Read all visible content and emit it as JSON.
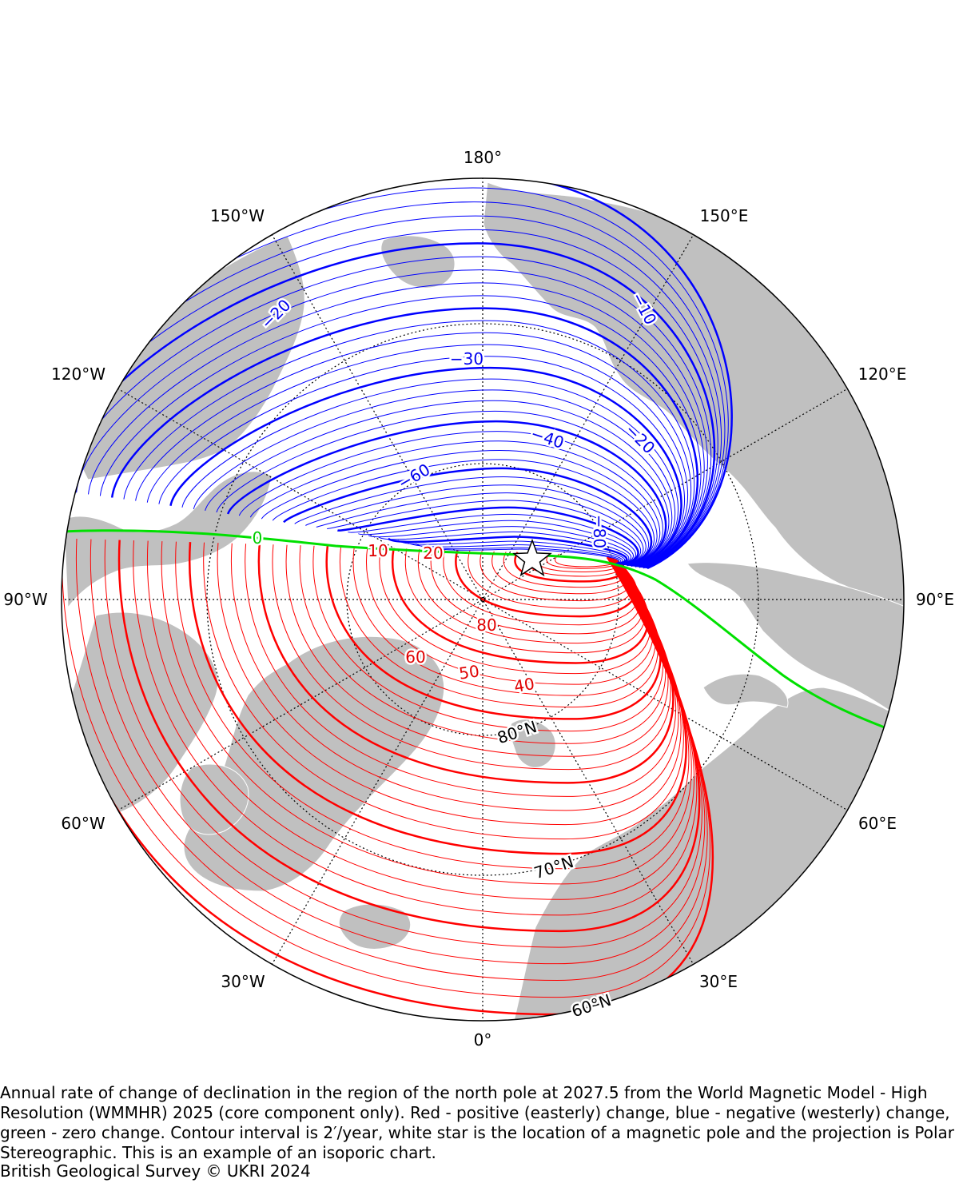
{
  "map": {
    "projection": "Polar Stereographic",
    "longitude_labels": {
      "top": "180°",
      "bottom": "0°",
      "left": "90°W",
      "right": "90°E",
      "w150": "150°W",
      "e150": "150°E",
      "w120": "120°W",
      "e120": "120°E",
      "w60": "60°W",
      "e60": "60°E",
      "w30": "30°W",
      "e30": "30°E"
    },
    "latitude_labels": {
      "lat80": "80°N",
      "lat70": "70°N",
      "lat60": "60°N"
    },
    "contour_labels": {
      "neg20_left": "−20",
      "neg10": "−10",
      "neg30": "−30",
      "neg20_right": "−20",
      "neg40": "−40",
      "neg60": "−60",
      "neg80": "−80",
      "zero": "0",
      "pos10": "10",
      "pos20": "20",
      "pos80": "80",
      "pos60": "60",
      "pos50": "50",
      "pos40": "40"
    },
    "contour_interval": "2′/year",
    "colors": {
      "positive": "#ff0000",
      "negative": "#0000ff",
      "zero": "#00e000",
      "land": "#c0c0c0",
      "ocean": "#ffffff"
    },
    "marker_icon": "white-star-icon"
  },
  "caption": {
    "text": "Annual rate of change of declination in the region of the north pole at 2027.5 from the World Magnetic Model - High Resolution (WMMHR) 2025 (core component only). Red - positive (easterly) change, blue - negative (westerly) change, green - zero change. Contour interval is 2′/year, white star is the location of a magnetic pole and the projection is Polar Stereographic. This is an example of an isoporic chart.",
    "credit": "British Geological Survey © UKRI 2024"
  }
}
